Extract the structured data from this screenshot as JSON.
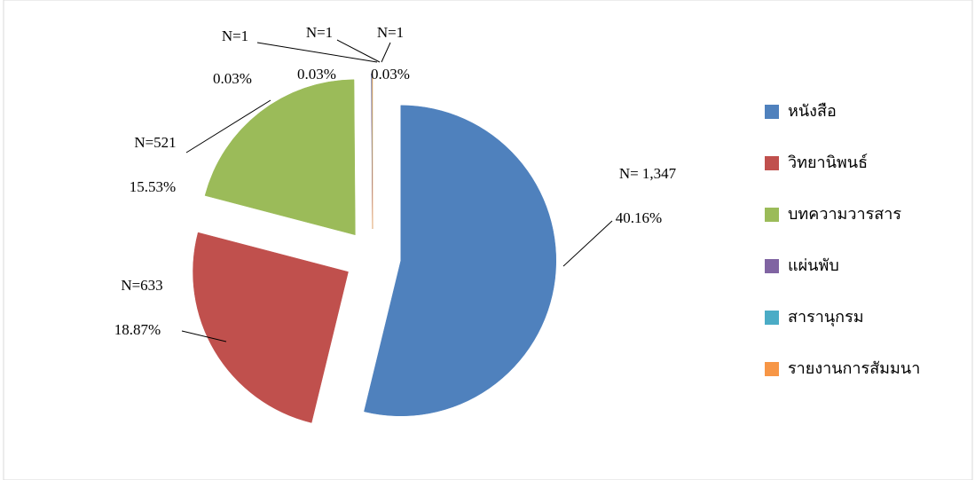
{
  "chart_data": {
    "type": "pie",
    "categories": [
      "หนังสือ",
      "วิทยานิพนธ์",
      "บทความวารสาร",
      "แผ่นพับ",
      "สารานุกรม",
      "รายงานการสัมมนา"
    ],
    "values": [
      40.16,
      18.87,
      15.53,
      0.03,
      0.03,
      0.03
    ],
    "value_labels": [
      "40.16%",
      "18.87%",
      "15.53%",
      "0.03%",
      "0.03%",
      "0.03%"
    ],
    "count_labels": [
      "N= 1,347",
      "N=633",
      "N=521",
      "N=1",
      "N=1",
      "N=1"
    ],
    "colors": [
      "#4f81bd",
      "#c0504d",
      "#9bbb59",
      "#8064a2",
      "#4bacc6",
      "#f79646"
    ],
    "legend": "right"
  }
}
